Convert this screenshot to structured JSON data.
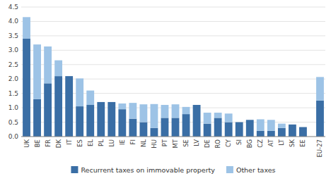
{
  "chart_data": {
    "type": "bar",
    "stacked": true,
    "grid": true,
    "legend": "bottom",
    "categories": [
      "UK",
      "BE",
      "FR",
      "DK",
      "IT",
      "ES",
      "EL",
      "PL",
      "LU",
      "IE",
      "FI",
      "NL",
      "HU",
      "PT",
      "MT",
      "SE",
      "LV",
      "DE",
      "RO",
      "CY",
      "SI",
      "BG",
      "CZ",
      "AT",
      "LT",
      "SK",
      "EE",
      "EU-27"
    ],
    "series": [
      {
        "name": "Recurrent taxes on immovable property",
        "color": "#3A6EA5",
        "values": [
          3.4,
          1.3,
          1.85,
          2.1,
          2.1,
          1.05,
          1.1,
          1.2,
          1.2,
          0.95,
          0.62,
          0.5,
          0.3,
          0.65,
          0.65,
          0.78,
          1.1,
          0.45,
          0.65,
          0.5,
          0.5,
          0.58,
          0.2,
          0.2,
          0.3,
          0.42,
          0.33,
          1.25
        ]
      },
      {
        "name": "Other taxes",
        "color": "#9DC3E6",
        "values": [
          0.75,
          1.9,
          1.28,
          0.55,
          0.0,
          0.97,
          0.5,
          0.0,
          0.0,
          0.2,
          0.55,
          0.62,
          0.83,
          0.45,
          0.47,
          0.25,
          0.0,
          0.38,
          0.18,
          0.3,
          0.0,
          0.0,
          0.4,
          0.38,
          0.15,
          0.0,
          0.0,
          0.82
        ]
      }
    ],
    "ylim": [
      0,
      4.5
    ],
    "yticks": [
      {
        "value": 0,
        "label": "0.0"
      },
      0.5,
      {
        "value": 1,
        "label": "1.0"
      },
      1.5,
      {
        "value": 2,
        "label": "2.0"
      },
      2.5,
      {
        "value": 3,
        "label": "3.0"
      },
      3.5,
      {
        "value": 4,
        "label": "4.0"
      },
      4.5
    ]
  }
}
